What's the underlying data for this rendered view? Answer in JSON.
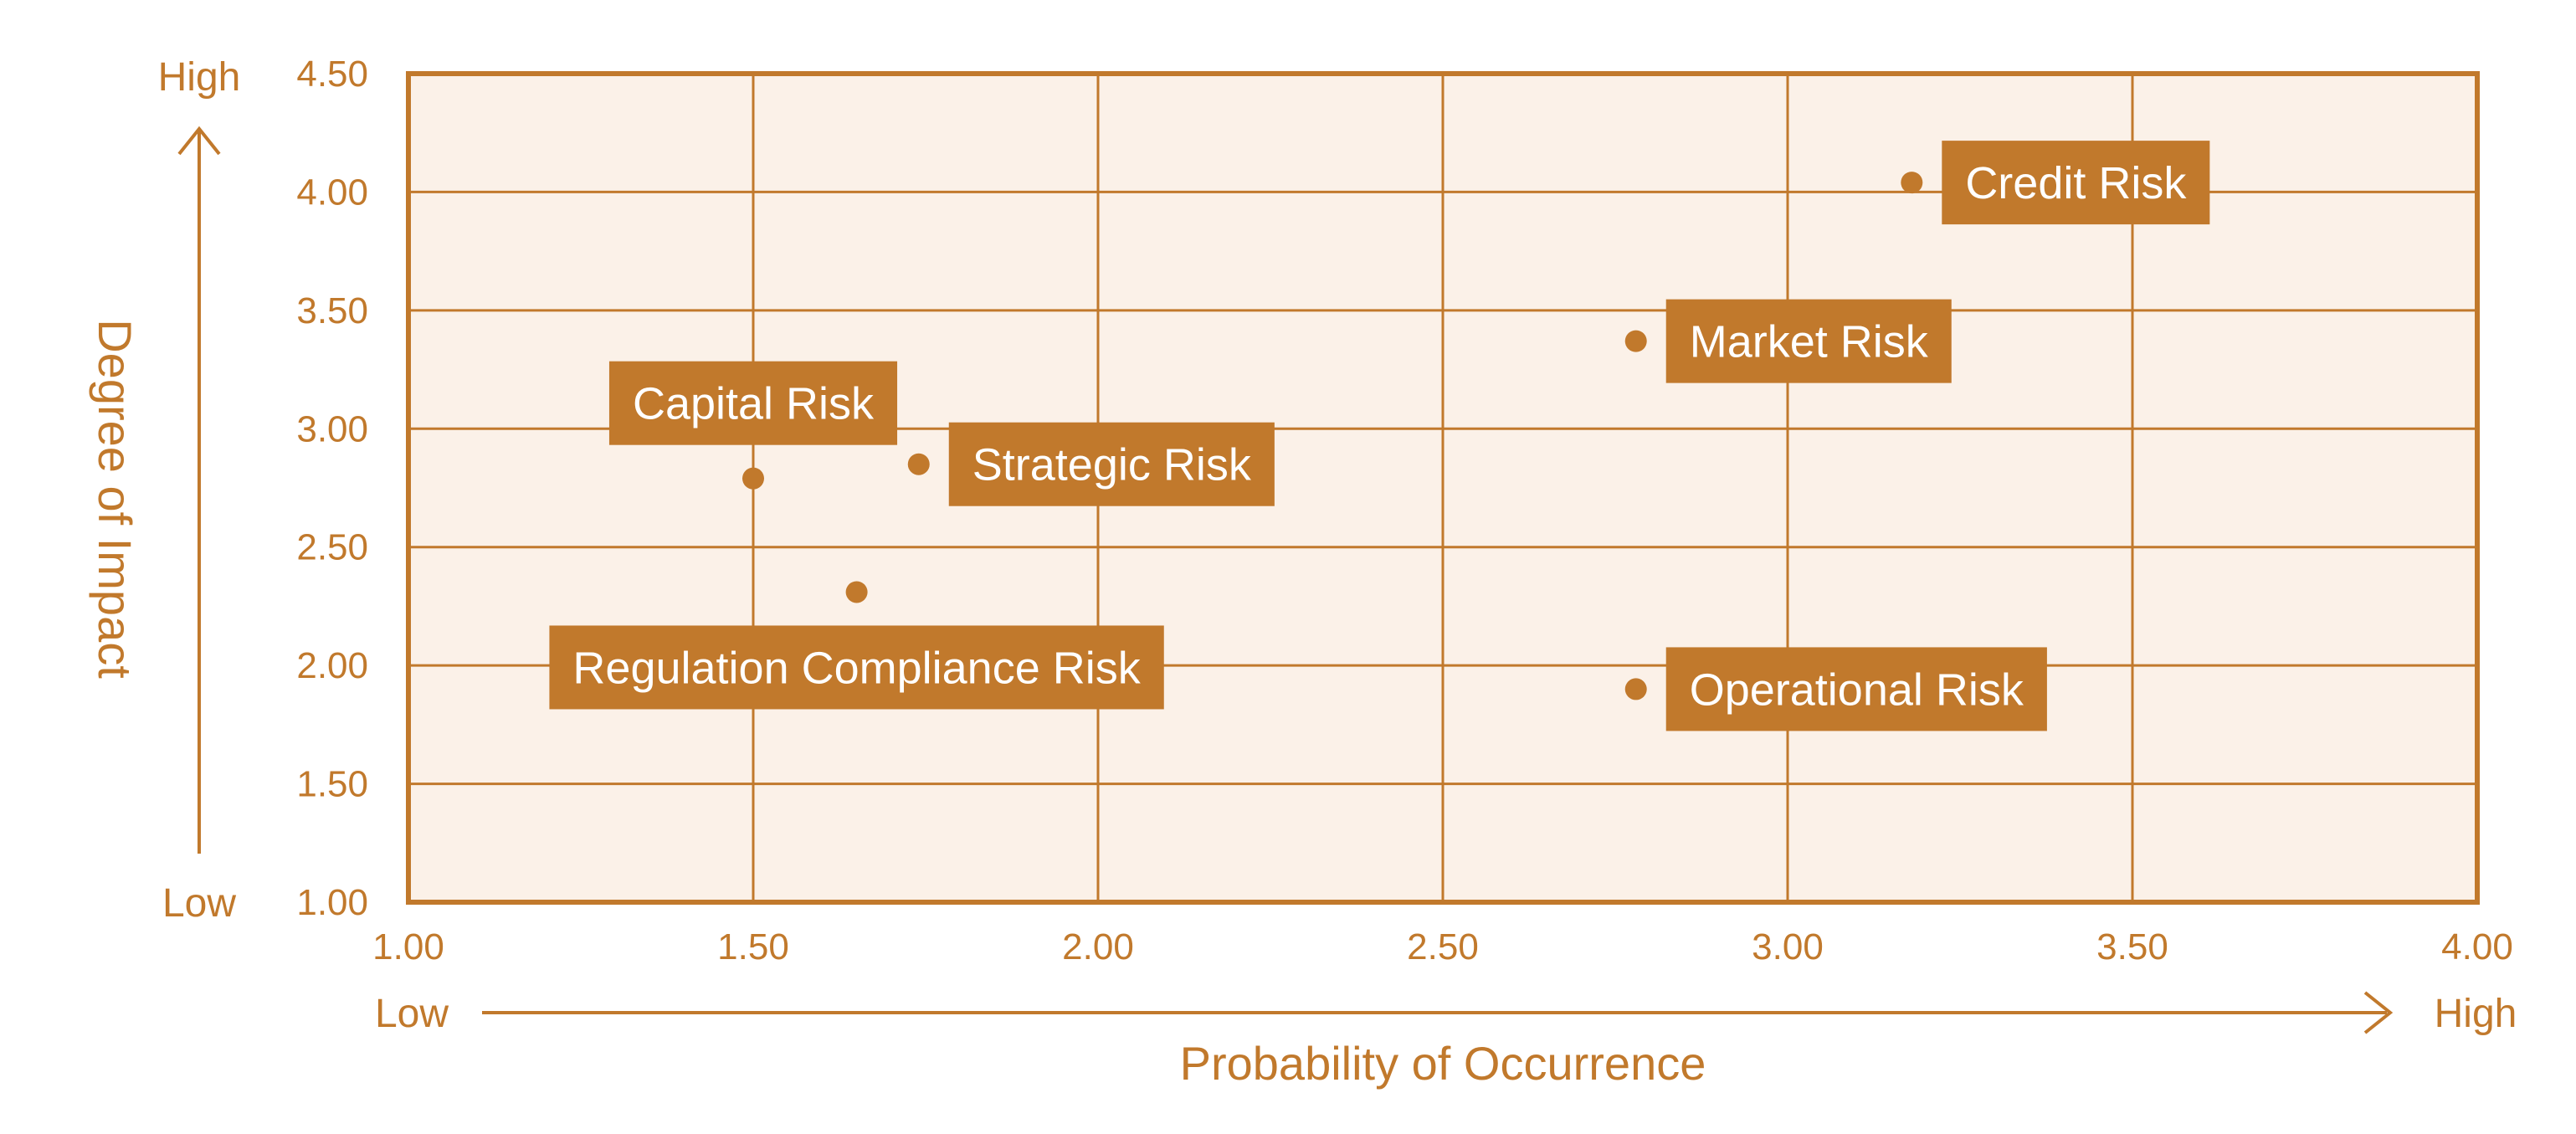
{
  "colors": {
    "accent": "#c1792c",
    "plot_bg": "#fbf1e8",
    "grid": "#c1792c",
    "label_fill": "#c1792c",
    "label_text": "#ffffff"
  },
  "chart_data": {
    "type": "scatter",
    "title": "",
    "xlabel": "Probability of Occurrence",
    "ylabel": "Degree of Impact",
    "xlim": [
      1.0,
      4.0
    ],
    "ylim": [
      1.0,
      4.5
    ],
    "x_ticks": [
      1.0,
      1.5,
      2.0,
      2.5,
      3.0,
      3.5,
      4.0
    ],
    "y_ticks": [
      1.0,
      1.5,
      2.0,
      2.5,
      3.0,
      3.5,
      4.0,
      4.5
    ],
    "x_tick_labels": [
      "1.00",
      "1.50",
      "2.00",
      "2.50",
      "3.00",
      "3.50",
      "4.00"
    ],
    "y_tick_labels": [
      "1.00",
      "1.50",
      "2.00",
      "2.50",
      "3.00",
      "3.50",
      "4.00",
      "4.50"
    ],
    "x_low_label": "Low",
    "x_high_label": "High",
    "y_low_label": "Low",
    "y_high_label": "High",
    "grid": true,
    "points": [
      {
        "name": "Credit Risk",
        "x": 3.18,
        "y": 4.04,
        "label_side": "right"
      },
      {
        "name": "Market Risk",
        "x": 2.78,
        "y": 3.37,
        "label_side": "right"
      },
      {
        "name": "Strategic Risk",
        "x": 1.74,
        "y": 2.85,
        "label_side": "right"
      },
      {
        "name": "Capital Risk",
        "x": 1.5,
        "y": 2.79,
        "label_side": "above"
      },
      {
        "name": "Regulation Compliance Risk",
        "x": 1.65,
        "y": 2.31,
        "label_side": "below"
      },
      {
        "name": "Operational Risk",
        "x": 2.78,
        "y": 1.9,
        "label_side": "right"
      }
    ]
  }
}
